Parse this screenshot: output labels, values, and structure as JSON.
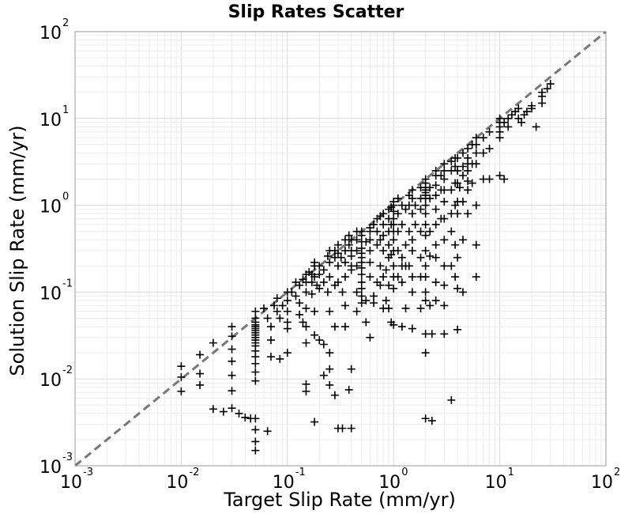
{
  "chart_data": {
    "type": "scatter",
    "title": "Slip Rates Scatter",
    "xlabel": "Target Slip Rate (mm/yr)",
    "ylabel": "Solution Slip Rate (mm/yr)",
    "xscale": "log",
    "yscale": "log",
    "xlim": [
      0.001,
      100
    ],
    "ylim": [
      0.001,
      100
    ],
    "grid": true,
    "marker": "+",
    "x_ticks": [
      {
        "base": "10",
        "exp": "-3",
        "value": 0.001
      },
      {
        "base": "10",
        "exp": "-2",
        "value": 0.01
      },
      {
        "base": "10",
        "exp": "-1",
        "value": 0.1
      },
      {
        "base": "10",
        "exp": "0",
        "value": 1
      },
      {
        "base": "10",
        "exp": "1",
        "value": 10
      },
      {
        "base": "10",
        "exp": "2",
        "value": 100
      }
    ],
    "y_ticks": [
      {
        "base": "10",
        "exp": "-3",
        "value": 0.001
      },
      {
        "base": "10",
        "exp": "-2",
        "value": 0.01
      },
      {
        "base": "10",
        "exp": "-1",
        "value": 0.1
      },
      {
        "base": "10",
        "exp": "0",
        "value": 1
      },
      {
        "base": "10",
        "exp": "1",
        "value": 10
      },
      {
        "base": "10",
        "exp": "2",
        "value": 100
      }
    ],
    "reference_line": {
      "style": "dashed",
      "color": "#777777",
      "from": [
        0.001,
        0.001
      ],
      "to": [
        100,
        100
      ]
    },
    "points": [
      [
        0.01,
        0.014
      ],
      [
        0.01,
        0.0105
      ],
      [
        0.01,
        0.0072
      ],
      [
        0.015,
        0.019
      ],
      [
        0.015,
        0.0115
      ],
      [
        0.015,
        0.0085
      ],
      [
        0.02,
        0.026
      ],
      [
        0.02,
        0.0045
      ],
      [
        0.025,
        0.0042
      ],
      [
        0.03,
        0.04
      ],
      [
        0.03,
        0.031
      ],
      [
        0.03,
        0.022
      ],
      [
        0.03,
        0.016
      ],
      [
        0.03,
        0.011
      ],
      [
        0.03,
        0.0073
      ],
      [
        0.03,
        0.0046
      ],
      [
        0.035,
        0.004
      ],
      [
        0.04,
        0.0036
      ],
      [
        0.045,
        0.0035
      ],
      [
        0.05,
        0.06
      ],
      [
        0.05,
        0.05
      ],
      [
        0.05,
        0.045
      ],
      [
        0.05,
        0.042
      ],
      [
        0.05,
        0.04
      ],
      [
        0.05,
        0.038
      ],
      [
        0.05,
        0.036
      ],
      [
        0.05,
        0.034
      ],
      [
        0.05,
        0.032
      ],
      [
        0.05,
        0.03
      ],
      [
        0.05,
        0.028
      ],
      [
        0.05,
        0.026
      ],
      [
        0.05,
        0.024
      ],
      [
        0.05,
        0.021
      ],
      [
        0.05,
        0.018
      ],
      [
        0.05,
        0.015
      ],
      [
        0.05,
        0.012
      ],
      [
        0.05,
        0.0095
      ],
      [
        0.05,
        0.0035
      ],
      [
        0.05,
        0.0026
      ],
      [
        0.05,
        0.0019
      ],
      [
        0.05,
        0.0015
      ],
      [
        0.06,
        0.065
      ],
      [
        0.065,
        0.05
      ],
      [
        0.07,
        0.04
      ],
      [
        0.07,
        0.028
      ],
      [
        0.07,
        0.018
      ],
      [
        0.065,
        0.0025
      ],
      [
        0.075,
        0.07
      ],
      [
        0.08,
        0.085
      ],
      [
        0.08,
        0.06
      ],
      [
        0.085,
        0.05
      ],
      [
        0.09,
        0.07
      ],
      [
        0.085,
        0.017
      ],
      [
        0.1,
        0.1
      ],
      [
        0.1,
        0.08
      ],
      [
        0.1,
        0.06
      ],
      [
        0.1,
        0.045
      ],
      [
        0.1,
        0.038
      ],
      [
        0.1,
        0.02
      ],
      [
        0.11,
        0.1
      ],
      [
        0.12,
        0.13
      ],
      [
        0.12,
        0.09
      ],
      [
        0.13,
        0.12
      ],
      [
        0.13,
        0.075
      ],
      [
        0.13,
        0.055
      ],
      [
        0.14,
        0.14
      ],
      [
        0.14,
        0.045
      ],
      [
        0.15,
        0.16
      ],
      [
        0.15,
        0.13
      ],
      [
        0.15,
        0.1
      ],
      [
        0.15,
        0.065
      ],
      [
        0.15,
        0.04
      ],
      [
        0.15,
        0.026
      ],
      [
        0.15,
        0.0087
      ],
      [
        0.15,
        0.0072
      ],
      [
        0.16,
        0.17
      ],
      [
        0.17,
        0.13
      ],
      [
        0.17,
        0.095
      ],
      [
        0.17,
        0.16
      ],
      [
        0.18,
        0.22
      ],
      [
        0.18,
        0.2
      ],
      [
        0.18,
        0.15
      ],
      [
        0.18,
        0.06
      ],
      [
        0.18,
        0.032
      ],
      [
        0.18,
        0.0032
      ],
      [
        0.19,
        0.12
      ],
      [
        0.2,
        0.2
      ],
      [
        0.2,
        0.16
      ],
      [
        0.2,
        0.11
      ],
      [
        0.2,
        0.028
      ],
      [
        0.22,
        0.18
      ],
      [
        0.22,
        0.13
      ],
      [
        0.22,
        0.025
      ],
      [
        0.22,
        0.011
      ],
      [
        0.24,
        0.26
      ],
      [
        0.24,
        0.1
      ],
      [
        0.25,
        0.3
      ],
      [
        0.25,
        0.22
      ],
      [
        0.25,
        0.15
      ],
      [
        0.25,
        0.06
      ],
      [
        0.25,
        0.02
      ],
      [
        0.25,
        0.013
      ],
      [
        0.25,
        0.0085
      ],
      [
        0.28,
        0.3
      ],
      [
        0.28,
        0.25
      ],
      [
        0.28,
        0.12
      ],
      [
        0.28,
        0.04
      ],
      [
        0.28,
        0.0065
      ],
      [
        0.3,
        0.35
      ],
      [
        0.3,
        0.28
      ],
      [
        0.3,
        0.2
      ],
      [
        0.3,
        0.13
      ],
      [
        0.3,
        0.0027
      ],
      [
        0.32,
        0.25
      ],
      [
        0.33,
        0.1
      ],
      [
        0.33,
        0.0027
      ],
      [
        0.35,
        0.4
      ],
      [
        0.35,
        0.3
      ],
      [
        0.35,
        0.22
      ],
      [
        0.35,
        0.15
      ],
      [
        0.35,
        0.07
      ],
      [
        0.35,
        0.04
      ],
      [
        0.38,
        0.45
      ],
      [
        0.38,
        0.35
      ],
      [
        0.38,
        0.0075
      ],
      [
        0.4,
        0.4
      ],
      [
        0.4,
        0.3
      ],
      [
        0.4,
        0.26
      ],
      [
        0.4,
        0.2
      ],
      [
        0.4,
        0.18
      ],
      [
        0.4,
        0.013
      ],
      [
        0.4,
        0.0027
      ],
      [
        0.45,
        0.5
      ],
      [
        0.45,
        0.4
      ],
      [
        0.45,
        0.3
      ],
      [
        0.45,
        0.2
      ],
      [
        0.45,
        0.1
      ],
      [
        0.45,
        0.06
      ],
      [
        0.5,
        0.5
      ],
      [
        0.5,
        0.45
      ],
      [
        0.5,
        0.38
      ],
      [
        0.5,
        0.32
      ],
      [
        0.5,
        0.28
      ],
      [
        0.5,
        0.25
      ],
      [
        0.5,
        0.22
      ],
      [
        0.5,
        0.19
      ],
      [
        0.5,
        0.16
      ],
      [
        0.5,
        0.13
      ],
      [
        0.5,
        0.11
      ],
      [
        0.5,
        0.09
      ],
      [
        0.5,
        0.075
      ],
      [
        0.55,
        0.38
      ],
      [
        0.55,
        0.08
      ],
      [
        0.55,
        0.045
      ],
      [
        0.6,
        0.55
      ],
      [
        0.6,
        0.5
      ],
      [
        0.6,
        0.4
      ],
      [
        0.6,
        0.3
      ],
      [
        0.6,
        0.22
      ],
      [
        0.6,
        0.15
      ],
      [
        0.6,
        0.03
      ],
      [
        0.65,
        0.6
      ],
      [
        0.65,
        0.09
      ],
      [
        0.65,
        0.075
      ],
      [
        0.7,
        0.7
      ],
      [
        0.7,
        0.5
      ],
      [
        0.7,
        0.35
      ],
      [
        0.7,
        0.13
      ],
      [
        0.75,
        0.75
      ],
      [
        0.75,
        0.4
      ],
      [
        0.75,
        0.2
      ],
      [
        0.75,
        0.12
      ],
      [
        0.8,
        0.8
      ],
      [
        0.8,
        0.6
      ],
      [
        0.8,
        0.45
      ],
      [
        0.8,
        0.3
      ],
      [
        0.8,
        0.15
      ],
      [
        0.8,
        0.065
      ],
      [
        0.85,
        0.18
      ],
      [
        0.85,
        0.08
      ],
      [
        0.9,
        0.9
      ],
      [
        0.9,
        0.7
      ],
      [
        0.9,
        0.5
      ],
      [
        0.9,
        0.35
      ],
      [
        0.9,
        0.25
      ],
      [
        0.9,
        0.12
      ],
      [
        0.9,
        0.065
      ],
      [
        0.95,
        0.95
      ],
      [
        0.95,
        0.6
      ],
      [
        0.95,
        0.27
      ],
      [
        0.95,
        0.045
      ],
      [
        1.0,
        1.1
      ],
      [
        1.0,
        1.0
      ],
      [
        1.0,
        0.85
      ],
      [
        1.0,
        0.7
      ],
      [
        1.0,
        0.6
      ],
      [
        1.0,
        0.5
      ],
      [
        1.0,
        0.4
      ],
      [
        1.0,
        0.3
      ],
      [
        1.0,
        0.2
      ],
      [
        1.0,
        0.15
      ],
      [
        1.0,
        0.11
      ],
      [
        1.0,
        0.042
      ],
      [
        1.1,
        1.2
      ],
      [
        1.1,
        0.8
      ],
      [
        1.1,
        0.5
      ],
      [
        1.1,
        0.3
      ],
      [
        1.1,
        0.15
      ],
      [
        1.2,
        1.0
      ],
      [
        1.2,
        0.6
      ],
      [
        1.2,
        0.25
      ],
      [
        1.2,
        0.2
      ],
      [
        1.2,
        0.13
      ],
      [
        1.2,
        0.04
      ],
      [
        1.3,
        0.9
      ],
      [
        1.3,
        0.35
      ],
      [
        1.3,
        0.2
      ],
      [
        1.3,
        0.065
      ],
      [
        1.4,
        1.3
      ],
      [
        1.4,
        1.0
      ],
      [
        1.4,
        0.5
      ],
      [
        1.4,
        0.2
      ],
      [
        1.5,
        1.5
      ],
      [
        1.5,
        1.2
      ],
      [
        1.5,
        0.8
      ],
      [
        1.5,
        0.4
      ],
      [
        1.5,
        0.3
      ],
      [
        1.5,
        0.15
      ],
      [
        1.5,
        0.1
      ],
      [
        1.5,
        0.038
      ],
      [
        1.6,
        1.0
      ],
      [
        1.6,
        0.6
      ],
      [
        1.8,
        1.6
      ],
      [
        1.8,
        1.2
      ],
      [
        1.8,
        0.9
      ],
      [
        1.8,
        0.5
      ],
      [
        1.8,
        0.25
      ],
      [
        1.8,
        0.15
      ],
      [
        1.8,
        0.065
      ],
      [
        2.0,
        2.0
      ],
      [
        2.0,
        1.8
      ],
      [
        2.0,
        1.6
      ],
      [
        2.0,
        1.5
      ],
      [
        2.0,
        1.4
      ],
      [
        2.0,
        1.3
      ],
      [
        2.0,
        1.2
      ],
      [
        2.0,
        1.0
      ],
      [
        2.0,
        0.8
      ],
      [
        2.0,
        0.6
      ],
      [
        2.0,
        0.45
      ],
      [
        2.0,
        0.3
      ],
      [
        2.0,
        0.2
      ],
      [
        2.0,
        0.15
      ],
      [
        2.0,
        0.1
      ],
      [
        2.0,
        0.08
      ],
      [
        2.0,
        0.033
      ],
      [
        2.0,
        0.02
      ],
      [
        2.0,
        0.0035
      ],
      [
        2.2,
        1.6
      ],
      [
        2.2,
        1.2
      ],
      [
        2.2,
        0.5
      ],
      [
        2.2,
        0.26
      ],
      [
        2.2,
        0.07
      ],
      [
        2.3,
        0.033
      ],
      [
        2.3,
        0.0033
      ],
      [
        2.5,
        2.5
      ],
      [
        2.5,
        2.2
      ],
      [
        2.5,
        1.7
      ],
      [
        2.5,
        1.3
      ],
      [
        2.5,
        0.9
      ],
      [
        2.5,
        0.6
      ],
      [
        2.5,
        0.35
      ],
      [
        2.5,
        0.25
      ],
      [
        2.5,
        0.13
      ],
      [
        2.5,
        0.08
      ],
      [
        2.8,
        2.2
      ],
      [
        2.8,
        1.5
      ],
      [
        2.8,
        0.7
      ],
      [
        3.0,
        3.0
      ],
      [
        3.0,
        2.5
      ],
      [
        3.0,
        2.0
      ],
      [
        3.0,
        1.5
      ],
      [
        3.0,
        1.1
      ],
      [
        3.0,
        0.7
      ],
      [
        3.0,
        0.4
      ],
      [
        3.0,
        0.2
      ],
      [
        3.0,
        0.12
      ],
      [
        3.0,
        0.07
      ],
      [
        3.0,
        0.033
      ],
      [
        3.5,
        3.2
      ],
      [
        3.5,
        2.5
      ],
      [
        3.5,
        1.5
      ],
      [
        3.5,
        0.8
      ],
      [
        3.5,
        0.5
      ],
      [
        3.5,
        0.2
      ],
      [
        3.5,
        0.0057
      ],
      [
        3.8,
        3.5
      ],
      [
        3.8,
        2.8
      ],
      [
        3.8,
        1.8
      ],
      [
        3.8,
        1.0
      ],
      [
        3.8,
        0.35
      ],
      [
        3.8,
        0.15
      ],
      [
        4.0,
        3.5
      ],
      [
        4.0,
        2.5
      ],
      [
        4.0,
        1.8
      ],
      [
        4.0,
        1.1
      ],
      [
        4.0,
        0.8
      ],
      [
        4.0,
        0.25
      ],
      [
        4.0,
        0.11
      ],
      [
        4.0,
        0.037
      ],
      [
        4.2,
        1.6
      ],
      [
        4.5,
        4.0
      ],
      [
        4.5,
        2.8
      ],
      [
        4.5,
        2.2
      ],
      [
        4.5,
        1.1
      ],
      [
        4.5,
        0.4
      ],
      [
        4.5,
        0.1
      ],
      [
        5.0,
        4.5
      ],
      [
        5.0,
        3.5
      ],
      [
        5.0,
        3.0
      ],
      [
        5.0,
        2.5
      ],
      [
        5.0,
        1.9
      ],
      [
        5.0,
        1.5
      ],
      [
        5.0,
        0.8
      ],
      [
        5.5,
        5.0
      ],
      [
        5.5,
        3.0
      ],
      [
        5.5,
        1.8
      ],
      [
        6.0,
        6.0
      ],
      [
        6.0,
        5.0
      ],
      [
        6.0,
        4.0
      ],
      [
        6.0,
        3.0
      ],
      [
        6.0,
        1.0
      ],
      [
        6.0,
        0.35
      ],
      [
        6.0,
        0.15
      ],
      [
        7.0,
        6.0
      ],
      [
        7.0,
        4.0
      ],
      [
        7.0,
        2.0
      ],
      [
        8.0,
        7.0
      ],
      [
        8.0,
        2.0
      ],
      [
        8.0,
        4.5
      ],
      [
        10,
        10
      ],
      [
        10,
        9
      ],
      [
        10,
        8
      ],
      [
        10,
        7
      ],
      [
        10,
        6
      ],
      [
        10,
        2.2
      ],
      [
        11,
        9
      ],
      [
        11,
        2.0
      ],
      [
        12,
        10
      ],
      [
        12,
        8
      ],
      [
        13,
        11
      ],
      [
        14,
        12
      ],
      [
        15,
        13
      ],
      [
        15,
        10
      ],
      [
        16,
        9
      ],
      [
        17,
        11
      ],
      [
        18,
        12
      ],
      [
        20,
        14
      ],
      [
        20,
        13
      ],
      [
        22,
        8
      ],
      [
        25,
        20
      ],
      [
        25,
        18
      ],
      [
        25,
        15
      ],
      [
        28,
        22
      ],
      [
        30,
        25
      ]
    ]
  }
}
